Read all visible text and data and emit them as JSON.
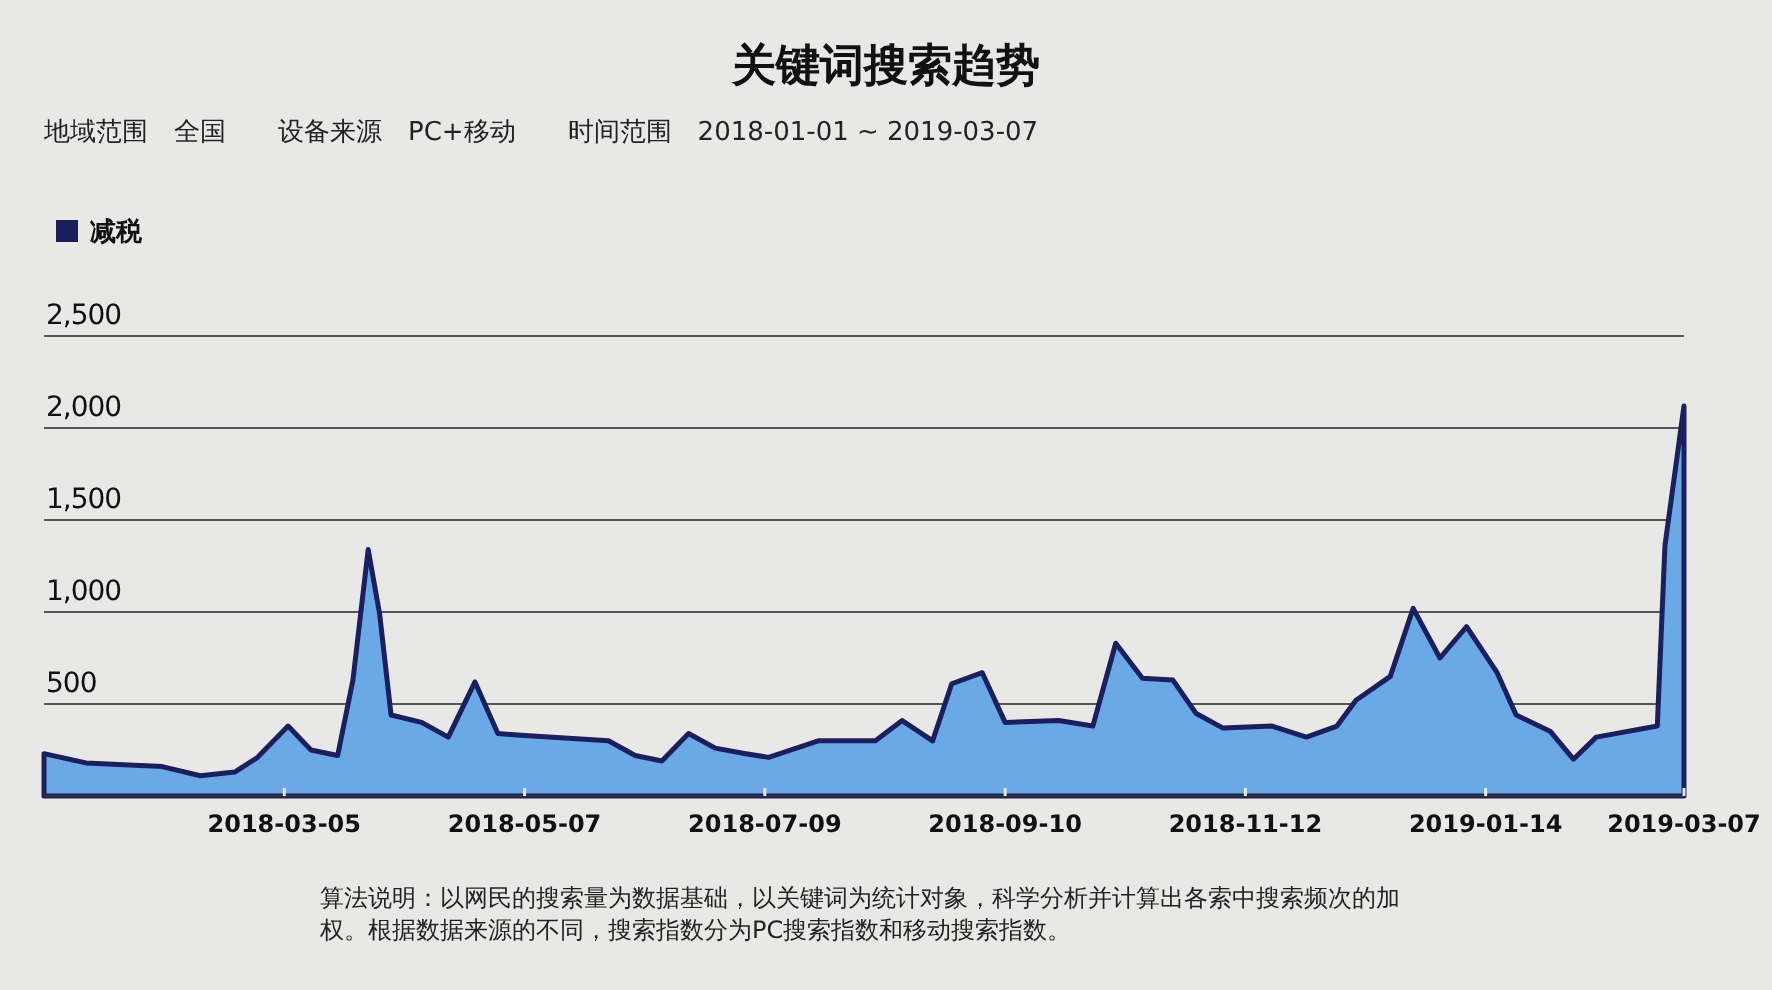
{
  "chart_data": {
    "type": "area",
    "title": "关键词搜索趋势",
    "subtitle": "地域范围　全国　　设备来源　PC+移动　　时间范围　2018-01-01 ~ 2019-03-07",
    "x": [
      "2018-01-01",
      "2018-01-12",
      "2018-02-01",
      "2018-02-11",
      "2018-02-20",
      "2018-02-26",
      "2018-03-06",
      "2018-03-12",
      "2018-03-19",
      "2018-03-23",
      "2018-03-27",
      "2018-03-30",
      "2018-04-02",
      "2018-04-10",
      "2018-04-17",
      "2018-04-24",
      "2018-04-30",
      "2018-05-06",
      "2018-05-29",
      "2018-06-05",
      "2018-06-12",
      "2018-06-19",
      "2018-06-26",
      "2018-07-04",
      "2018-07-10",
      "2018-07-23",
      "2018-08-02",
      "2018-08-07",
      "2018-08-14",
      "2018-08-22",
      "2018-08-27",
      "2018-09-04",
      "2018-09-10",
      "2018-09-24",
      "2018-10-03",
      "2018-10-09",
      "2018-10-16",
      "2018-10-24",
      "2018-10-30",
      "2018-11-06",
      "2018-11-19",
      "2018-11-28",
      "2018-12-06",
      "2018-12-11",
      "2018-12-20",
      "2018-12-26",
      "2019-01-02",
      "2019-01-09",
      "2019-01-17",
      "2019-01-22",
      "2019-01-31",
      "2019-02-06",
      "2019-02-12",
      "2019-02-28",
      "2019-03-02",
      "2019-03-07"
    ],
    "series": [
      {
        "name": "减税",
        "color": "#1b1f5e",
        "values": [
          230,
          180,
          160,
          110,
          130,
          210,
          380,
          250,
          220,
          630,
          1340,
          990,
          440,
          400,
          320,
          620,
          340,
          330,
          300,
          220,
          190,
          340,
          260,
          230,
          210,
          300,
          300,
          300,
          410,
          300,
          610,
          670,
          400,
          410,
          380,
          830,
          640,
          630,
          450,
          370,
          380,
          320,
          380,
          520,
          650,
          1020,
          750,
          920,
          670,
          440,
          350,
          200,
          320,
          380,
          1360,
          2120
        ]
      }
    ],
    "xlim": [
      "2018-01-01",
      "2019-03-07"
    ],
    "xticks": [
      {
        "value": "2018-03-05",
        "label": "2018-03-05"
      },
      {
        "value": "2018-05-07",
        "label": "2018-05-07"
      },
      {
        "value": "2018-07-09",
        "label": "2018-07-09"
      },
      {
        "value": "2018-09-10",
        "label": "2018-09-10"
      },
      {
        "value": "2018-11-12",
        "label": "2018-11-12"
      },
      {
        "value": "2019-01-14",
        "label": "2019-01-14"
      },
      {
        "value": "2019-03-07",
        "label": "2019-03-07"
      }
    ],
    "ylim": [
      0,
      2500
    ],
    "yticks": [
      {
        "value": 500,
        "label": "500"
      },
      {
        "value": 1000,
        "label": "1,000"
      },
      {
        "value": 1500,
        "label": "1,500"
      },
      {
        "value": 2000,
        "label": "2,000"
      },
      {
        "value": 2500,
        "label": "2,500"
      }
    ],
    "grid": "y",
    "legend": "top left",
    "annotations": [
      "算法说明：以网民的搜索量为数据基础，以关键词为统计对象，科学分析并计算出各索中搜索频次的加权。根据数据来源的不同，搜索指数分为PC搜索指数和移动搜索指数。"
    ]
  }
}
